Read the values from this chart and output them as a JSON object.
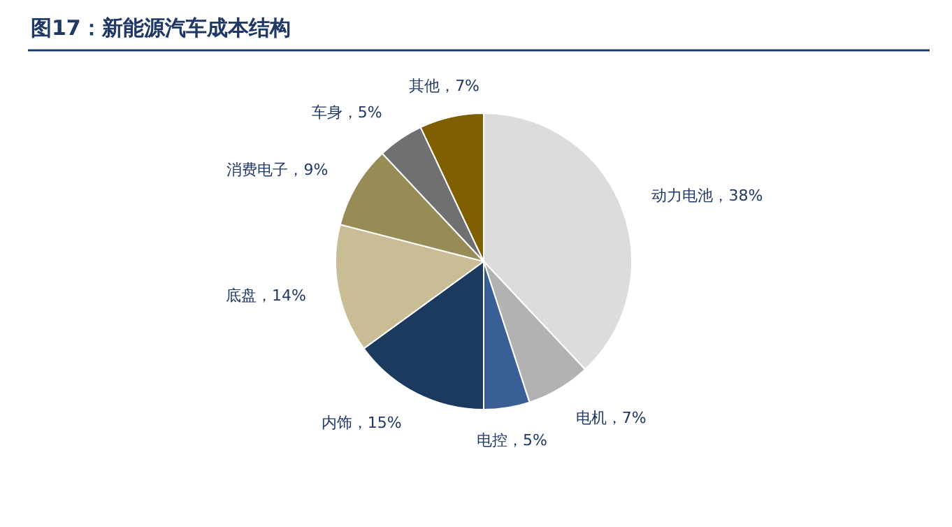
{
  "chart_data": {
    "type": "pie",
    "title": "图17：新能源汽车成本结构",
    "categories": [
      "动力电池",
      "电机",
      "电控",
      "内饰",
      "底盘",
      "消费电子",
      "车身",
      "其他"
    ],
    "values": [
      38,
      7,
      5,
      15,
      14,
      9,
      5,
      7
    ],
    "value_labels": [
      "，38%",
      "，7%",
      "，5%",
      "，15%",
      "，14%",
      "，9%",
      "，5%",
      "，7%"
    ],
    "colors": [
      "#dcdcdc",
      "#b2b2b2",
      "#3a5f96",
      "#1b3a5e",
      "#c8bd95",
      "#978c56",
      "#707070",
      "#7f5f00"
    ],
    "legend": false
  }
}
